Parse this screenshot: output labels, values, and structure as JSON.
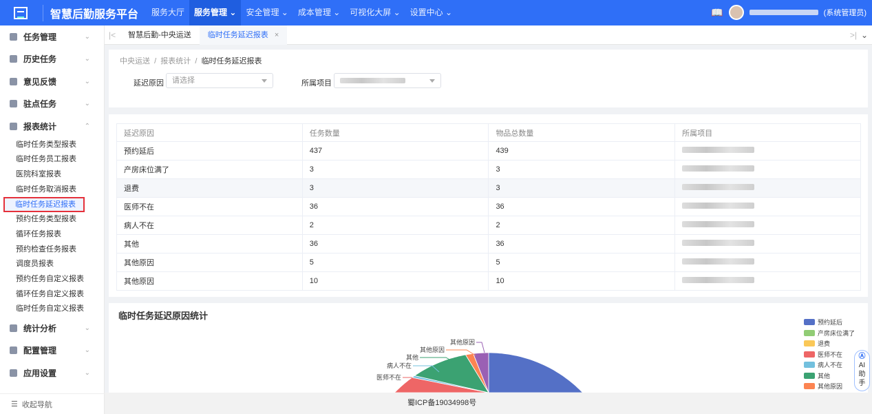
{
  "header": {
    "title": "智慧后勤服务平台",
    "nav": [
      "服务大厅",
      "服务管理",
      "安全管理",
      "成本管理",
      "可视化大屏",
      "设置中心"
    ],
    "user_role": "(系统管理员)"
  },
  "sidebar": {
    "groups_top": [
      "任务管理",
      "历史任务",
      "意见反馈",
      "驻点任务",
      "报表统计"
    ],
    "items": [
      "临时任务类型报表",
      "临时任务员工报表",
      "医院科室报表",
      "临时任务取消报表",
      "临时任务延迟报表",
      "预约任务类型报表",
      "循环任务报表",
      "预约检查任务报表",
      "调度员报表",
      "预约任务自定义报表",
      "循环任务自定义报表",
      "临时任务自定义报表"
    ],
    "groups_bottom": [
      "统计分析",
      "配置管理",
      "应用设置"
    ],
    "collapse": "收起导航"
  },
  "tabs": [
    "智慧后勤-中央运送",
    "临时任务延迟报表"
  ],
  "breadcrumb": [
    "中央运送",
    "报表统计",
    "临时任务延迟报表"
  ],
  "filters": {
    "reason_label": "延迟原因",
    "reason_placeholder": "请选择",
    "project_label": "所属项目"
  },
  "table": {
    "headers": [
      "延迟原因",
      "任务数量",
      "物品总数量",
      "所属项目"
    ],
    "rows": [
      [
        "预约延后",
        "437",
        "439"
      ],
      [
        "产房床位满了",
        "3",
        "3"
      ],
      [
        "退费",
        "3",
        "3"
      ],
      [
        "医师不在",
        "36",
        "36"
      ],
      [
        "病人不在",
        "2",
        "2"
      ],
      [
        "其他",
        "36",
        "36"
      ],
      [
        "其他原因",
        "5",
        "5"
      ],
      [
        "其他原因",
        "10",
        "10"
      ]
    ]
  },
  "chart_data": {
    "type": "pie",
    "title": "临时任务延迟原因统计",
    "legend_position": "right",
    "categories": [
      "预约延后",
      "产房床位满了",
      "退费",
      "医师不在",
      "病人不在",
      "其他",
      "其他原因",
      "其他原因"
    ],
    "values": [
      437,
      3,
      3,
      36,
      2,
      36,
      5,
      10
    ],
    "colors": [
      "#5470c6",
      "#91cc75",
      "#fac858",
      "#ee6666",
      "#73c0de",
      "#3ba272",
      "#fc8452",
      "#9a60b4"
    ]
  },
  "footer": "蜀ICP备19034998号",
  "ai": {
    "label1": "AI",
    "label2": "助",
    "label3": "手"
  }
}
